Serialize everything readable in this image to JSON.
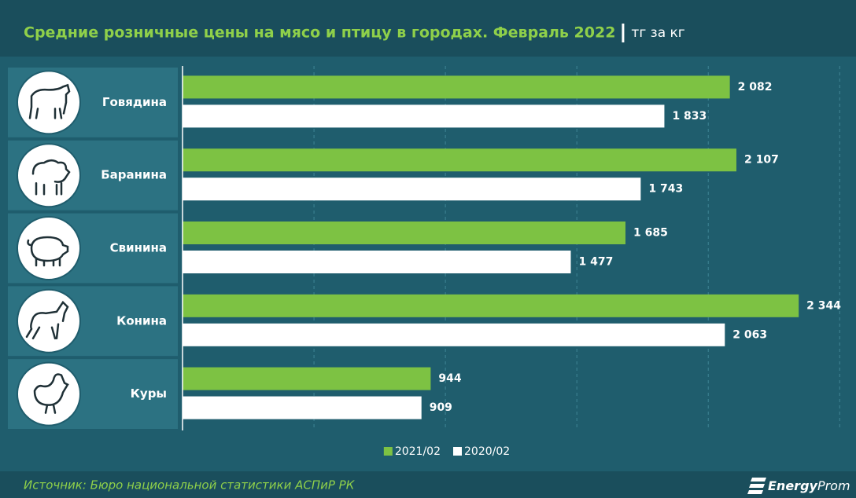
{
  "chart_data": {
    "type": "barh",
    "title": "Средние розничные цены на мясо и птицу в городах. Февраль 2022",
    "subtitle": "тг за кг",
    "categories": [
      "Говядина",
      "Баранина",
      "Свинина",
      "Конина",
      "Куры"
    ],
    "series": [
      {
        "name": "2021/02",
        "color": "#7dc243",
        "values": [
          2082,
          2107,
          1685,
          2344,
          944
        ],
        "value_labels": [
          "2 082",
          "2 107",
          "1 685",
          "2 344",
          "944"
        ]
      },
      {
        "name": "2020/02",
        "color": "#ffffff",
        "values": [
          1833,
          1743,
          1477,
          2063,
          909
        ],
        "value_labels": [
          "1 833",
          "1 743",
          "1 477",
          "2 063",
          "909"
        ]
      }
    ],
    "xlim": [
      0,
      2550
    ],
    "xticks": [
      0,
      500,
      1000,
      1500,
      2000,
      2500
    ],
    "grid": true,
    "legend": "bottom",
    "source": "Источник: Бюро национальной статистики АСПиР РК",
    "logo_bold": "Energy",
    "logo_rest": "Prom"
  }
}
